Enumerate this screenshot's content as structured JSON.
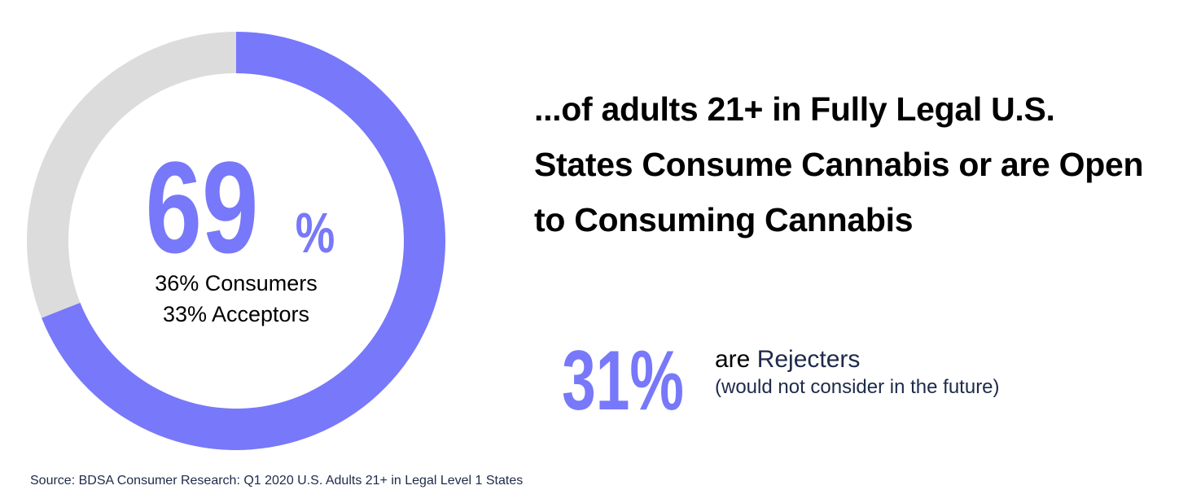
{
  "chart_data": {
    "type": "pie",
    "style": "donut",
    "slices": [
      {
        "label": "Consumers + Acceptors",
        "value": 69,
        "color": "#7878fa"
      },
      {
        "label": "Rejecters",
        "value": 31,
        "color": "#dcdcdc"
      }
    ],
    "center_value": "69",
    "center_unit": "%",
    "center_lines": [
      "36% Consumers",
      "33% Acceptors"
    ],
    "legend": false
  },
  "headline": {
    "line1": "...of adults 21+ in Fully Legal U.S.",
    "line2": "States Consume Cannabis or are Open",
    "line3": "to Consuming Cannabis"
  },
  "rejecters": {
    "value": "31%",
    "prefix": "are ",
    "label": "Rejecters",
    "note": "(would not consider in the future)"
  },
  "source": "Source: BDSA Consumer Research: Q1 2020 U.S. Adults 21+ in Legal Level 1 States",
  "colors": {
    "accent": "#7878fa",
    "track": "#dcdcdc",
    "text": "#000000",
    "text_dark": "#1e2a4a"
  }
}
